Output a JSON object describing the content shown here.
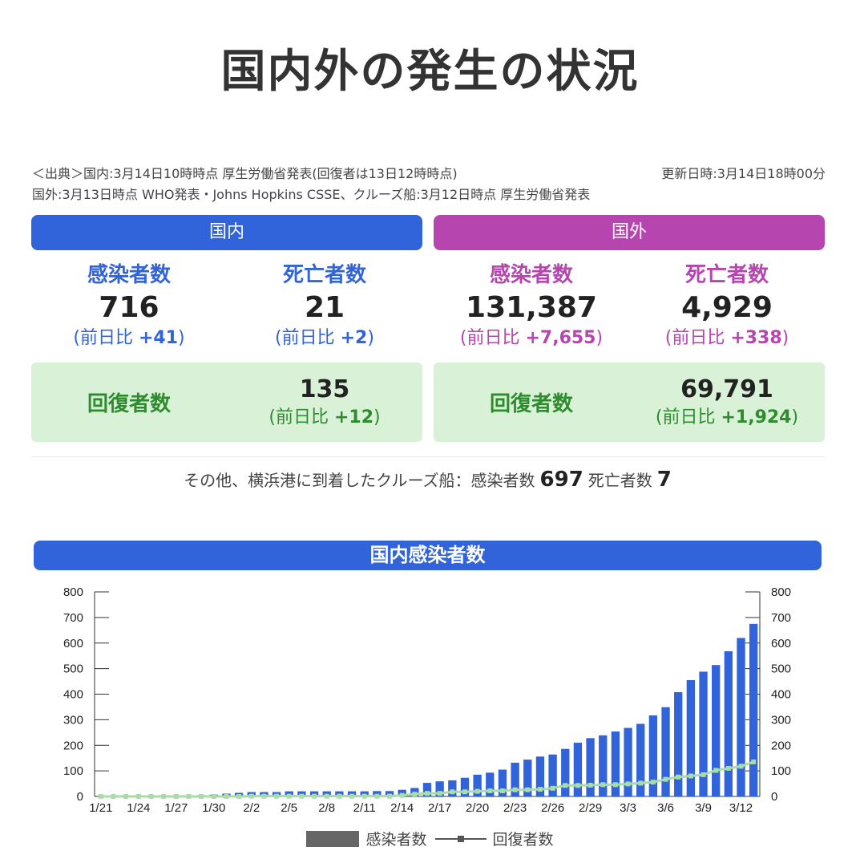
{
  "title": "国内外の発生の状況",
  "source": {
    "line1_left": "＜出典＞国内:3月14日10時時点 厚生労働省発表(回復者は13日12時時点)",
    "line1_right": "更新日時:3月14日18時00分",
    "line2": "国外:3月13日時点 WHO発表・Johns Hopkins CSSE、クルーズ船:3月12日時点 厚生労働省発表"
  },
  "domestic": {
    "header": "国内",
    "infected_label": "感染者数",
    "infected_value": "716",
    "infected_diff_prefix": "(前日比 ",
    "infected_diff": "+41",
    "infected_diff_suffix": ")",
    "deaths_label": "死亡者数",
    "deaths_value": "21",
    "deaths_diff_prefix": "(前日比 ",
    "deaths_diff": "+2",
    "deaths_diff_suffix": ")",
    "recovered_label": "回復者数",
    "recovered_value": "135",
    "recovered_diff_prefix": "(前日比 ",
    "recovered_diff": "+12",
    "recovered_diff_suffix": ")"
  },
  "overseas": {
    "header": "国外",
    "infected_label": "感染者数",
    "infected_value": "131,387",
    "infected_diff_prefix": "(前日比 ",
    "infected_diff": "+7,655",
    "infected_diff_suffix": ")",
    "deaths_label": "死亡者数",
    "deaths_value": "4,929",
    "deaths_diff_prefix": "(前日比 ",
    "deaths_diff": "+338",
    "deaths_diff_suffix": ")",
    "recovered_label": "回復者数",
    "recovered_value": "69,791",
    "recovered_diff_prefix": "(前日比 ",
    "recovered_diff": "+1,924",
    "recovered_diff_suffix": ")"
  },
  "cruise": {
    "prefix": "その他、横浜港に到着したクルーズ船：感染者数",
    "infected": "697",
    "deaths_label": "死亡者数",
    "deaths": "7"
  },
  "colors": {
    "domestic": "#3164da",
    "overseas": "#b645b0",
    "recovery_bg": "#d9f2d7",
    "recovery_text": "#2e8b2e",
    "bar": "#3164da",
    "recovered_line": "#a8dca8"
  },
  "chart_data": {
    "type": "bar",
    "title": "国内感染者数",
    "ylim": [
      0,
      800
    ],
    "yticks": [
      "0",
      "100",
      "200",
      "300",
      "400",
      "500",
      "600",
      "700",
      "800"
    ],
    "x_tick_labels": [
      "1/21",
      "1/24",
      "1/27",
      "1/30",
      "2/2",
      "2/5",
      "2/8",
      "2/11",
      "2/14",
      "2/17",
      "2/20",
      "2/23",
      "2/26",
      "2/29",
      "3/3",
      "3/6",
      "3/9",
      "3/12"
    ],
    "categories": [
      "1/21",
      "1/22",
      "1/23",
      "1/24",
      "1/25",
      "1/26",
      "1/27",
      "1/28",
      "1/29",
      "1/30",
      "1/31",
      "2/1",
      "2/2",
      "2/3",
      "2/4",
      "2/5",
      "2/6",
      "2/7",
      "2/8",
      "2/9",
      "2/10",
      "2/11",
      "2/12",
      "2/13",
      "2/14",
      "2/15",
      "2/16",
      "2/17",
      "2/18",
      "2/19",
      "2/20",
      "2/21",
      "2/22",
      "2/23",
      "2/24",
      "2/25",
      "2/26",
      "2/27",
      "2/28",
      "2/29",
      "3/1",
      "3/2",
      "3/3",
      "3/4",
      "3/5",
      "3/6",
      "3/7",
      "3/8",
      "3/9",
      "3/10",
      "3/11",
      "3/12",
      "3/13"
    ],
    "series": [
      {
        "name": "感染者数",
        "kind": "bar",
        "values": [
          0,
          1,
          1,
          1,
          2,
          2,
          3,
          4,
          5,
          7,
          11,
          14,
          17,
          17,
          17,
          20,
          20,
          20,
          20,
          20,
          20,
          20,
          21,
          21,
          26,
          33,
          53,
          59,
          63,
          73,
          85,
          93,
          105,
          132,
          144,
          156,
          164,
          186,
          210,
          228,
          239,
          254,
          268,
          284,
          317,
          349,
          408,
          455,
          488,
          514,
          568,
          620,
          675
        ]
      },
      {
        "name": "回復者数",
        "kind": "line",
        "values": [
          0,
          0,
          0,
          0,
          0,
          0,
          0,
          0,
          0,
          0,
          0,
          0,
          1,
          1,
          1,
          1,
          1,
          1,
          1,
          1,
          1,
          1,
          1,
          1,
          4,
          9,
          12,
          12,
          18,
          18,
          20,
          22,
          22,
          26,
          26,
          28,
          32,
          43,
          43,
          44,
          46,
          46,
          49,
          52,
          56,
          67,
          76,
          80,
          85,
          102,
          110,
          118,
          135
        ]
      }
    ],
    "legend": [
      "感染者数",
      "回復者数"
    ],
    "legend_position": "bottom"
  }
}
